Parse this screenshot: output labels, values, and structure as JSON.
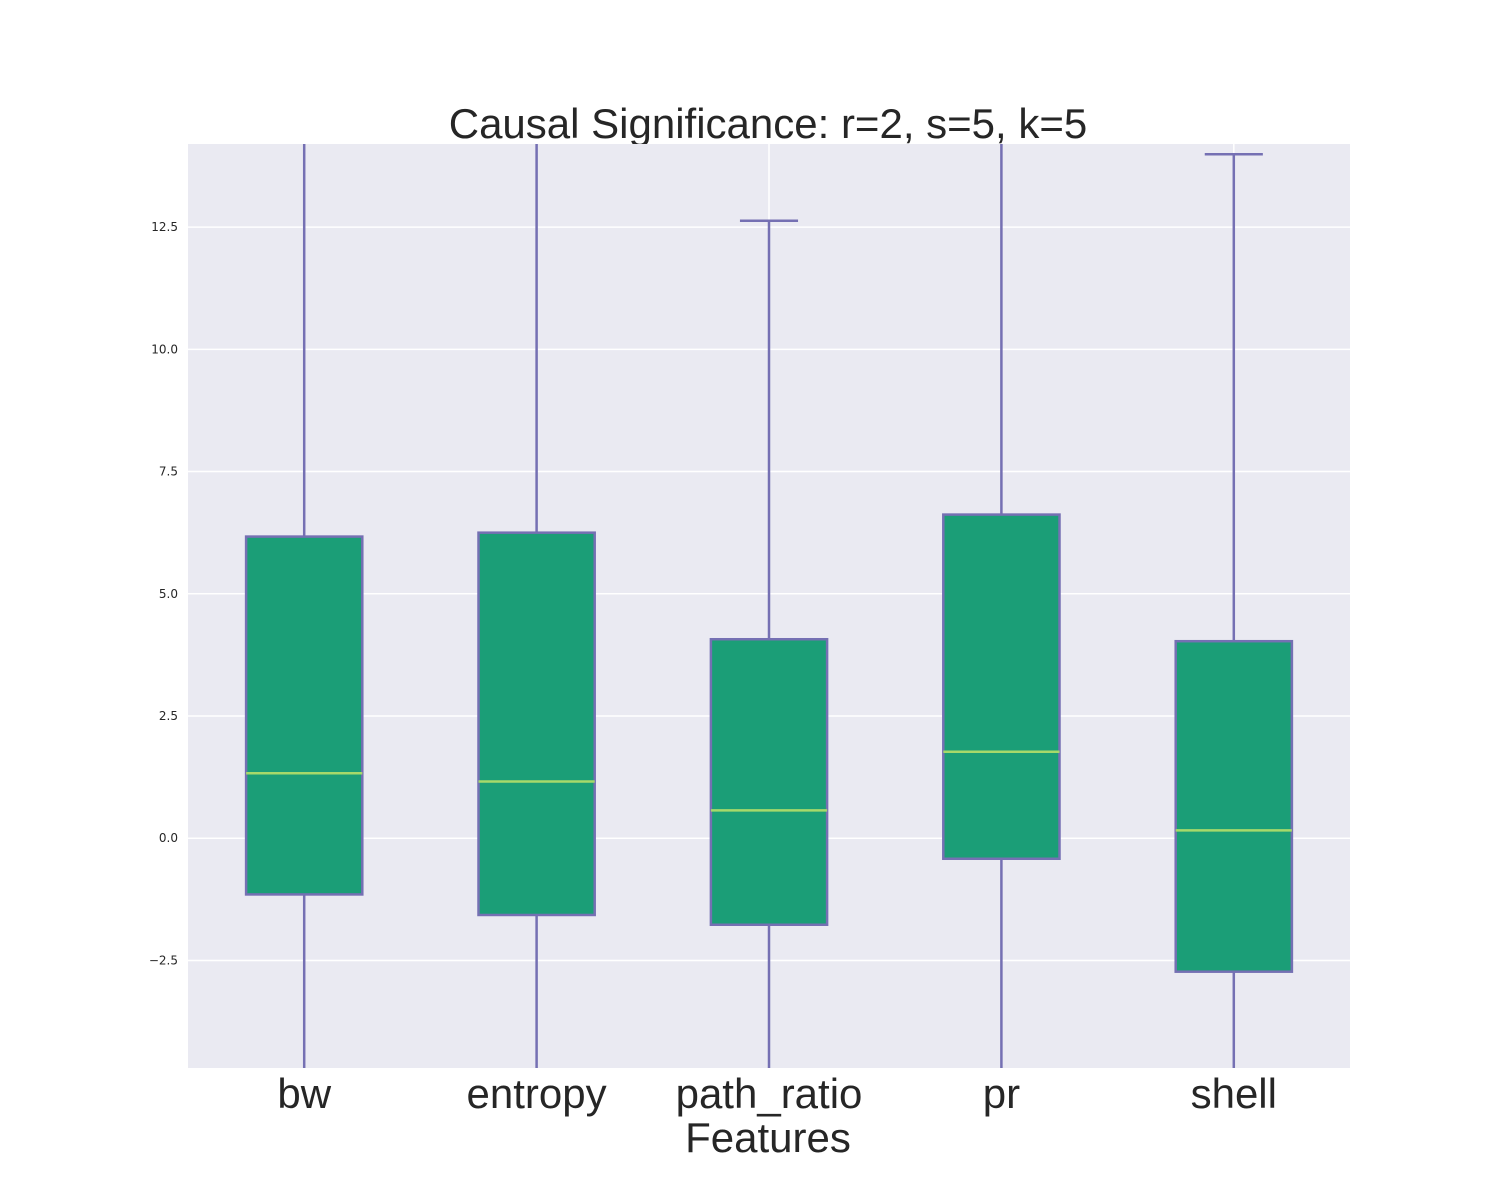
{
  "chart_data": {
    "type": "box",
    "title": "Causal Significance: r=2, s=5, k=5",
    "xlabel": "Features",
    "ylabel": "",
    "categories": [
      "bw",
      "entropy",
      "path_ratio",
      "pr",
      "shell"
    ],
    "boxes": [
      {
        "whisker_low": -4.7,
        "q1": -1.15,
        "median": 1.33,
        "q3": 6.17,
        "whisker_high": 14.2
      },
      {
        "whisker_low": -4.7,
        "q1": -1.57,
        "median": 1.16,
        "q3": 6.25,
        "whisker_high": 14.2
      },
      {
        "whisker_low": -4.7,
        "q1": -1.77,
        "median": 0.57,
        "q3": 4.07,
        "whisker_high": 12.63
      },
      {
        "whisker_low": -4.7,
        "q1": -0.42,
        "median": 1.77,
        "q3": 6.62,
        "whisker_high": 14.2
      },
      {
        "whisker_low": -4.7,
        "q1": -2.73,
        "median": 0.16,
        "q3": 4.03,
        "whisker_high": 13.99
      }
    ],
    "yticks": [
      "-2.5",
      "0.0",
      "2.5",
      "5.0",
      "7.5",
      "10.0",
      "12.5"
    ],
    "ytick_values": [
      -2.5,
      0,
      2.5,
      5,
      7.5,
      10,
      12.5
    ],
    "ylim": [
      -4.7,
      14.2
    ],
    "grid": true,
    "colors": {
      "box_fill": "#1b9e77",
      "box_edge": "#7570b3",
      "median": "#a6d96a",
      "background": "#eaeaf2",
      "grid": "#ffffff"
    }
  }
}
